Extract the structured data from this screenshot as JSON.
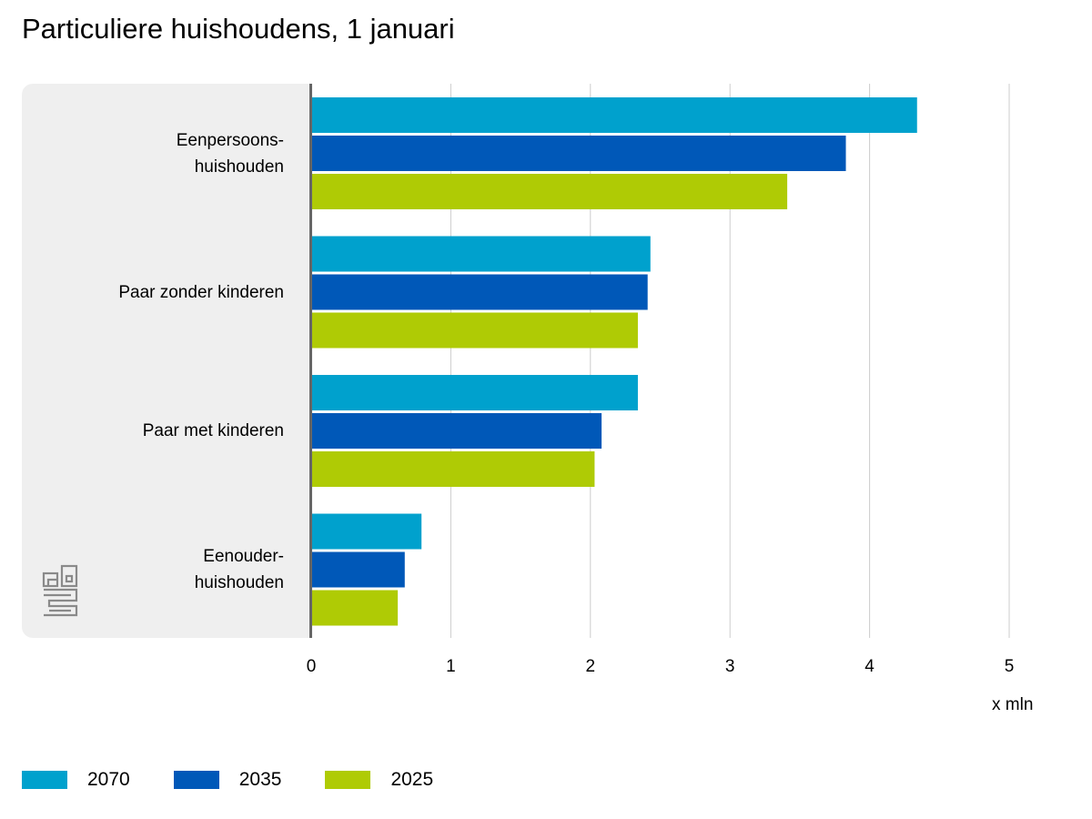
{
  "chart_data": {
    "type": "bar",
    "orientation": "horizontal",
    "title": "Particuliere huishoudens, 1 januari",
    "unit": "x mln",
    "xlim": [
      0,
      5
    ],
    "ticks": [
      "0",
      "1",
      "2",
      "3",
      "4",
      "5"
    ],
    "categories": [
      {
        "lines": [
          "Eenpersoons-",
          "huishouden"
        ]
      },
      {
        "lines": [
          "Paar zonder kinderen"
        ]
      },
      {
        "lines": [
          "Paar met kinderen"
        ]
      },
      {
        "lines": [
          "Eenouder-",
          "huishouden"
        ]
      }
    ],
    "series": [
      {
        "name": "2070",
        "color": "#00a1cd",
        "values": [
          4.34,
          2.43,
          2.34,
          0.79
        ]
      },
      {
        "name": "2035",
        "color": "#0058b8",
        "values": [
          3.83,
          2.41,
          2.08,
          0.67
        ]
      },
      {
        "name": "2025",
        "color": "#afcb05",
        "values": [
          3.41,
          2.34,
          2.03,
          0.62
        ]
      }
    ],
    "grid": true,
    "legend": "bottom-left"
  },
  "colors": {
    "panel": "#efefef",
    "axis": "#666666",
    "grid": "#cccccc"
  },
  "icons": {
    "logo": "cbs-logo-icon"
  }
}
